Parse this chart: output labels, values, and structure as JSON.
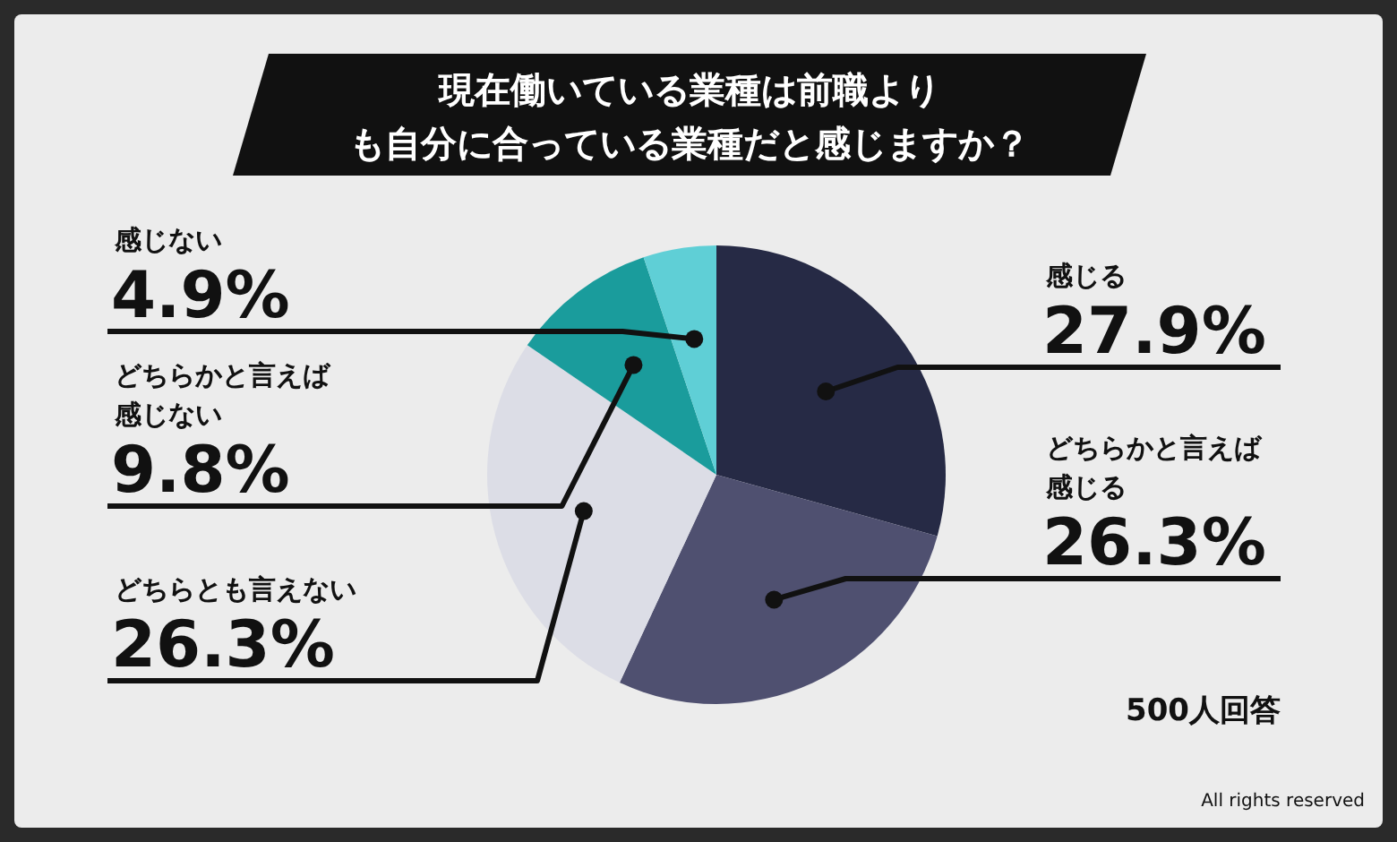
{
  "chart_data": {
    "type": "pie",
    "title": "現在働いている業種は前職よりも自分に合っている業種だと感じますか？",
    "categories": [
      "感じる",
      "どちらかと言えば感じる",
      "どちらとも言えない",
      "どちらかと言えば感じない",
      "感じない"
    ],
    "values": [
      27.9,
      26.3,
      26.3,
      9.8,
      4.9
    ],
    "colors": [
      "#262a45",
      "#4f5070",
      "#dcdde6",
      "#1a9c9c",
      "#5fcfd6"
    ],
    "value_labels": [
      "27.9%",
      "26.3%",
      "26.3%",
      "9.8%",
      "4.9%"
    ],
    "annotations": [
      "500人回答",
      "All rights reserved"
    ]
  }
}
